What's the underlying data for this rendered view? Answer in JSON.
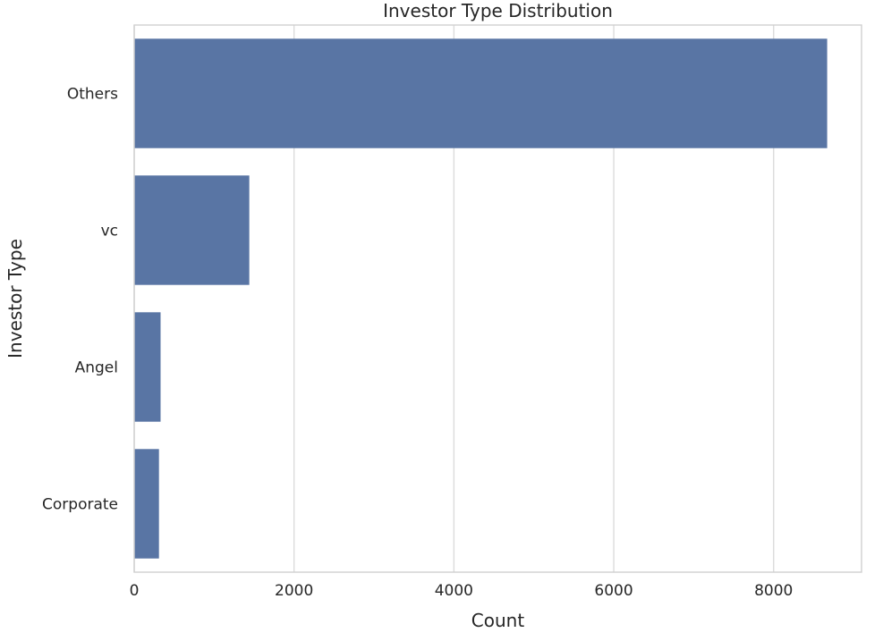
{
  "chart_data": {
    "type": "bar",
    "orientation": "horizontal",
    "title": "Investor Type Distribution",
    "xlabel": "Count",
    "ylabel": "Investor Type",
    "categories": [
      "Others",
      "vc",
      "Angel",
      "Corporate"
    ],
    "values": [
      8670,
      1440,
      330,
      310
    ],
    "xlim": [
      0,
      9100
    ],
    "xticks": [
      0,
      2000,
      4000,
      6000,
      8000
    ],
    "xtick_labels": [
      "0",
      "2000",
      "4000",
      "6000",
      "8000"
    ],
    "grid": "vertical",
    "legend": "none",
    "bar_color": "#5975a4"
  }
}
